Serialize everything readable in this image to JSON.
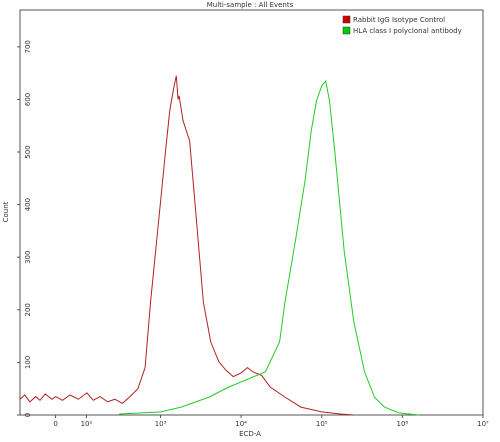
{
  "chart_data": {
    "type": "line",
    "title": "Multi-sample : All Events",
    "xlabel": "ECD-A",
    "ylabel": "Count",
    "xlim": [
      -120,
      10000000
    ],
    "ylim": [
      0,
      770
    ],
    "xticks": [
      0,
      {
        "value": 100,
        "label": "10²"
      },
      {
        "value": 1000,
        "label": "10³"
      },
      {
        "value": 10000,
        "label": "10⁴"
      },
      {
        "value": 100000,
        "label": "10⁵"
      },
      {
        "value": 1000000,
        "label": "10⁶"
      },
      {
        "value": 10000000,
        "label": "10⁷"
      }
    ],
    "yticks": [
      0,
      100,
      200,
      300,
      400,
      500,
      600,
      700
    ],
    "series": [
      {
        "name": "Rabbit IgG Isotype Control",
        "color": "#b22222",
        "legend_color": "#cc0000",
        "x": [
          -120,
          -100,
          -80,
          -60,
          -46,
          -30,
          -10,
          0,
          20,
          42,
          70,
          102,
          130,
          164,
          210,
          262,
          330,
          412,
          520,
          640,
          750,
          1000,
          1150,
          1300,
          1450,
          1570,
          1650,
          1700,
          1900,
          2300,
          2800,
          3400,
          4200,
          5300,
          6500,
          8000,
          10000,
          12000,
          14000,
          18000,
          23000,
          35000,
          55000,
          100000,
          170000,
          250000
        ],
        "values": [
          30,
          38,
          25,
          35,
          28,
          40,
          30,
          35,
          28,
          38,
          30,
          42,
          28,
          35,
          25,
          30,
          22,
          35,
          50,
          90,
          215,
          406,
          500,
          578,
          620,
          645,
          600,
          607,
          560,
          521,
          368,
          215,
          139,
          101,
          85,
          73,
          80,
          90,
          82,
          75,
          53,
          34,
          15,
          6,
          2,
          0
        ]
      },
      {
        "name": "HLA class I polyclonal antibody",
        "color": "#22cc22",
        "legend_color": "#00cc00",
        "x": [
          300,
          600,
          1000,
          1800,
          4000,
          7000,
          20000,
          30000,
          35000,
          47000,
          62000,
          74000,
          86000,
          100000,
          112000,
          125000,
          145000,
          190000,
          250000,
          340000,
          450000,
          600000,
          900000,
          1600000
        ],
        "values": [
          2,
          4,
          6,
          15,
          34,
          53,
          82,
          139,
          215,
          330,
          445,
          540,
          597,
          626,
          635,
          597,
          502,
          311,
          177,
          82,
          34,
          15,
          4,
          0
        ]
      }
    ]
  }
}
